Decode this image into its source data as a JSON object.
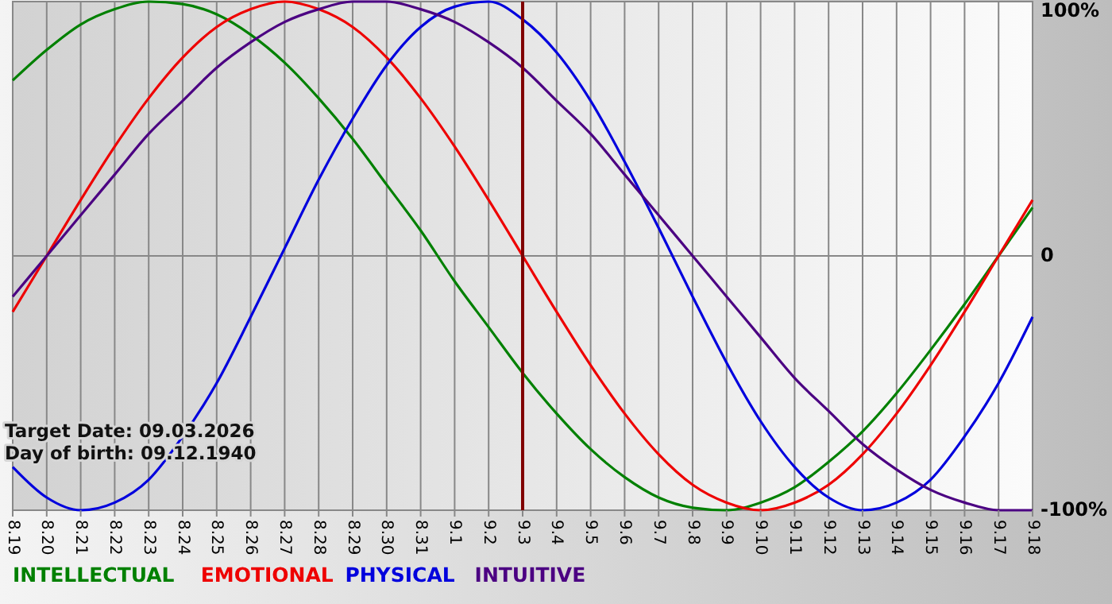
{
  "chart_data": {
    "type": "line",
    "categories": [
      "8.19",
      "8.20",
      "8.21",
      "8.22",
      "8.23",
      "8.24",
      "8.25",
      "8.26",
      "8.27",
      "8.28",
      "8.29",
      "8.30",
      "8.31",
      "9.1",
      "9.2",
      "9.3",
      "9.4",
      "9.5",
      "9.6",
      "9.7",
      "9.8",
      "9.9",
      "9.10",
      "9.11",
      "9.12",
      "9.13",
      "9.14",
      "9.15",
      "9.16",
      "9.17",
      "9.18"
    ],
    "ylim": [
      -100,
      100
    ],
    "yticks": [
      {
        "value": -100,
        "label": "-100%"
      },
      0,
      {
        "value": 100,
        "label": "100%"
      }
    ],
    "grid": true,
    "legend": "bottom left",
    "series": [
      {
        "name": "INTELLECTUAL",
        "color": "#008000",
        "values": [
          69,
          81,
          91,
          97,
          100,
          99,
          95,
          87,
          76,
          62,
          46,
          28,
          10,
          -10,
          -28,
          -46,
          -62,
          -76,
          -87,
          -95,
          -99,
          -100,
          -97,
          -91,
          -81,
          -69,
          -54,
          -37,
          -19,
          0,
          19
        ]
      },
      {
        "name": "EMOTIONAL",
        "color": "#ee0000",
        "values": [
          -22,
          0,
          22,
          43,
          62,
          78,
          90,
          97,
          100,
          97,
          90,
          78,
          62,
          43,
          22,
          0,
          -22,
          -43,
          -62,
          -78,
          -90,
          -97,
          -100,
          -97,
          -90,
          -78,
          -62,
          -43,
          -22,
          0,
          22
        ]
      },
      {
        "name": "PHYSICAL",
        "color": "#0000dd",
        "values": [
          -83,
          -95,
          -100,
          -97,
          -88,
          -71,
          -50,
          -24,
          3,
          30,
          54,
          75,
          90,
          98,
          100,
          93,
          80,
          61,
          37,
          11,
          -16,
          -42,
          -65,
          -83,
          -95,
          -100,
          -97,
          -88,
          -71,
          -50,
          -24
        ]
      },
      {
        "name": "INTUITIVE",
        "color": "#4b0082",
        "values": [
          -16,
          0,
          16,
          32,
          48,
          61,
          74,
          84,
          92,
          97,
          100,
          100,
          97,
          92,
          84,
          74,
          61,
          48,
          32,
          16,
          0,
          -16,
          -32,
          -48,
          -61,
          -74,
          -84,
          -92,
          -97,
          -100,
          -100
        ]
      }
    ],
    "ref_lines": [
      {
        "axis": "x",
        "value": "9.3",
        "color": "#800000"
      }
    ],
    "annotations": [
      "Target Date: 09.03.2026",
      "Day of birth: 09.12.1940"
    ]
  }
}
